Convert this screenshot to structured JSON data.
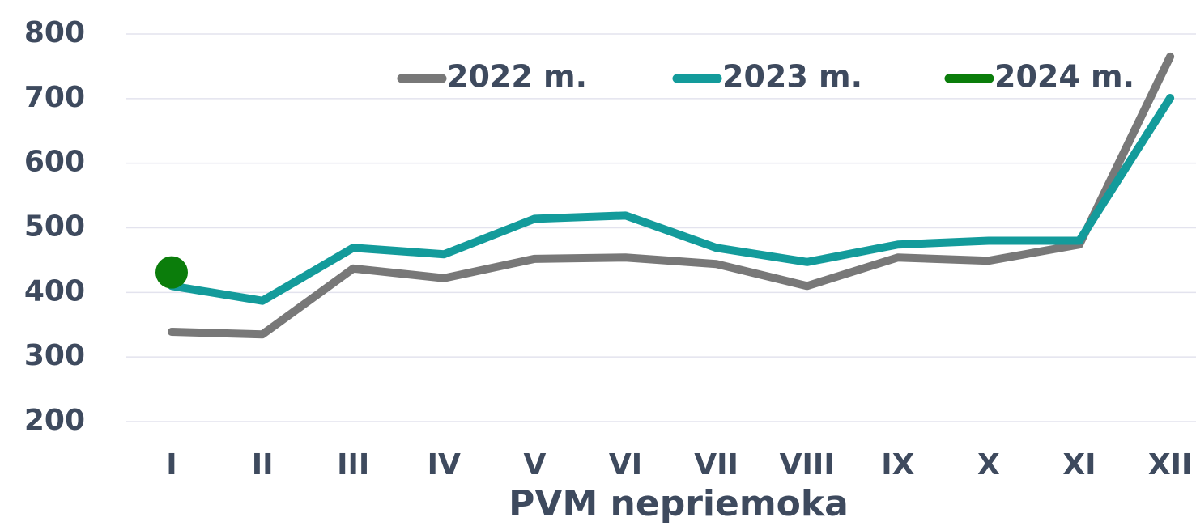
{
  "chart_data": {
    "type": "line",
    "x_label": "PVM nepriemoka",
    "categories": [
      "I",
      "II",
      "III",
      "IV",
      "V",
      "VI",
      "VII",
      "VIII",
      "IX",
      "X",
      "XI",
      "XII"
    ],
    "series": [
      {
        "name": "2022 m.",
        "color": "#787878",
        "values": [
          339,
          335,
          437,
          422,
          452,
          454,
          444,
          410,
          454,
          449,
          474,
          765
        ]
      },
      {
        "name": "2023 m.",
        "color": "#139b9b",
        "values": [
          410,
          387,
          469,
          459,
          514,
          519,
          469,
          447,
          474,
          480,
          480,
          701
        ]
      },
      {
        "name": "2024 m.",
        "color": "#0b7d0b",
        "values": [
          431,
          null,
          null,
          null,
          null,
          null,
          null,
          null,
          null,
          null,
          null,
          null
        ]
      }
    ],
    "ylim": [
      200,
      800
    ],
    "yticks": [
      200,
      300,
      400,
      500,
      600,
      700,
      800
    ],
    "grid": true,
    "legend": "top"
  }
}
